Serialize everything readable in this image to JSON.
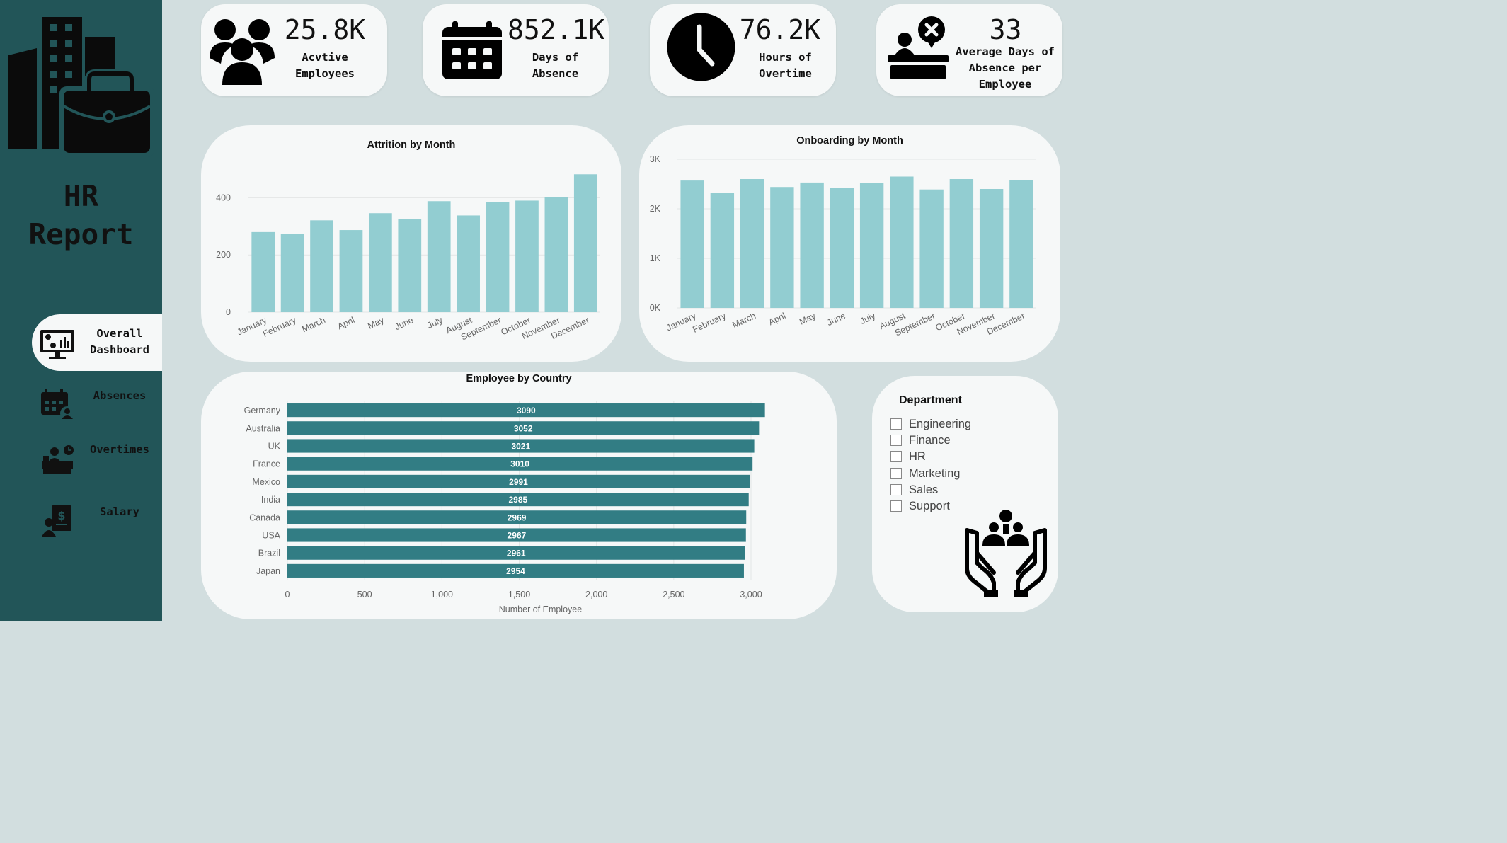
{
  "sidebar": {
    "title_line1": "HR",
    "title_line2": "Report",
    "nav": [
      {
        "line1": "Overall",
        "line2": "Dashboard",
        "icon": "dashboard-monitor-icon",
        "active": true
      },
      {
        "line1": "Absences",
        "line2": "",
        "icon": "calendar-person-icon",
        "active": false
      },
      {
        "line1": "Overtimes",
        "line2": "",
        "icon": "desk-worker-icon",
        "active": false
      },
      {
        "line1": "Salary",
        "line2": "",
        "icon": "salary-document-icon",
        "active": false
      }
    ]
  },
  "kpis": [
    {
      "value": "25.8K",
      "label_line1": "Acvtive",
      "label_line2": "Employees",
      "label_line3": "",
      "icon": "people-group-icon"
    },
    {
      "value": "852.1K",
      "label_line1": "Days of",
      "label_line2": "Absence",
      "label_line3": "",
      "icon": "calendar-icon"
    },
    {
      "value": "76.2K",
      "label_line1": "Hours of",
      "label_line2": "Overtime",
      "label_line3": "",
      "icon": "clock-icon"
    },
    {
      "value": "33",
      "label_line1": "Average Days of",
      "label_line2": "Absence per",
      "label_line3": "Employee",
      "icon": "absent-desk-icon"
    }
  ],
  "colors": {
    "sidebar": "#225558",
    "background": "#d2dedf",
    "card": "#f6f8f8",
    "bar_light": "#92cdd1",
    "bar_dark": "#327d84"
  },
  "chart_data": [
    {
      "type": "bar",
      "title": "Attrition by Month",
      "categories": [
        "January",
        "February",
        "March",
        "April",
        "May",
        "June",
        "July",
        "August",
        "September",
        "October",
        "November",
        "December"
      ],
      "values": [
        280,
        273,
        321,
        287,
        346,
        325,
        388,
        338,
        386,
        390,
        401,
        482
      ],
      "yticks": [
        "0",
        "200",
        "400"
      ],
      "ylim": [
        0,
        500
      ],
      "grid": true
    },
    {
      "type": "bar",
      "title": "Onboarding by Month",
      "categories": [
        "January",
        "February",
        "March",
        "April",
        "May",
        "June",
        "July",
        "August",
        "September",
        "October",
        "November",
        "December"
      ],
      "values": [
        2570,
        2320,
        2600,
        2440,
        2530,
        2420,
        2520,
        2650,
        2390,
        2600,
        2400,
        2580
      ],
      "yticks": [
        "0K",
        "1K",
        "2K",
        "3K"
      ],
      "ylim": [
        0,
        3000
      ],
      "grid": true
    },
    {
      "type": "bar",
      "orientation": "horizontal",
      "title": "Employee by Country",
      "categories": [
        "Germany",
        "Australia",
        "UK",
        "France",
        "Mexico",
        "India",
        "Canada",
        "USA",
        "Brazil",
        "Japan"
      ],
      "values": [
        3090,
        3052,
        3021,
        3010,
        2991,
        2985,
        2969,
        2967,
        2961,
        2954
      ],
      "data_labels": [
        "3090",
        "3052",
        "3021",
        "3010",
        "2991",
        "2985",
        "2969",
        "2967",
        "2961",
        "2954"
      ],
      "xticks": [
        "0",
        "500",
        "1,000",
        "1,500",
        "2,000",
        "2,500",
        "3,000"
      ],
      "xlim": [
        0,
        3000
      ],
      "xlabel": "Number of Employee",
      "grid": true
    }
  ],
  "department": {
    "title": "Department",
    "options": [
      "Engineering",
      "Finance",
      "HR",
      "Marketing",
      "Sales",
      "Support"
    ],
    "graphic_icon": "team-care-hands-icon"
  }
}
